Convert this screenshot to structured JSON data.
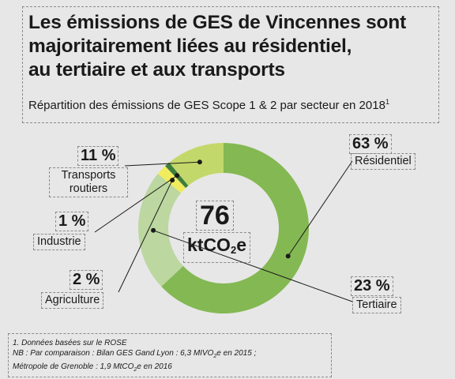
{
  "title_lines": [
    "Les émissions de GES de Vincennes sont",
    "majoritairement liées au résidentiel,",
    "au tertiaire et aux transports"
  ],
  "subtitle": "Répartition des émissions de GES Scope 1 & 2 par secteur en 2018",
  "subtitle_footnote_mark": "1",
  "center": {
    "value": "76",
    "unit_prefix": "ktCO",
    "unit_sub": "2",
    "unit_suffix": "e"
  },
  "chart_data": {
    "type": "pie",
    "donut": true,
    "total": 76,
    "unit": "ktCO2e",
    "slices": [
      {
        "label": "Résidentiel",
        "pct_label": "63 %",
        "value": 63,
        "color": "#84b853"
      },
      {
        "label": "Tertiaire",
        "pct_label": "23 %",
        "value": 23,
        "color": "#bcd7a0"
      },
      {
        "label": "Agriculture",
        "pct_label": "2 %",
        "value": 2,
        "color": "#f0ec5e"
      },
      {
        "label": "Industrie",
        "pct_label": "1 %",
        "value": 1,
        "color": "#3d7d3a"
      },
      {
        "label": "Transports routiers",
        "pct_label": "11 %",
        "value": 11,
        "color": "#c3d86a"
      }
    ]
  },
  "notes": {
    "line1": "1. Données basées sur le ROSE",
    "line2_a": "NB : Par comparaison : Bilan GES Gand Lyon : 6,3 MIVO",
    "line2_sub": "2",
    "line2_b": "e en 2015 ;",
    "line3_a": "Métropole de Grenoble : 1,9 MtCO",
    "line3_sub": "2",
    "line3_b": "e en 2016"
  }
}
